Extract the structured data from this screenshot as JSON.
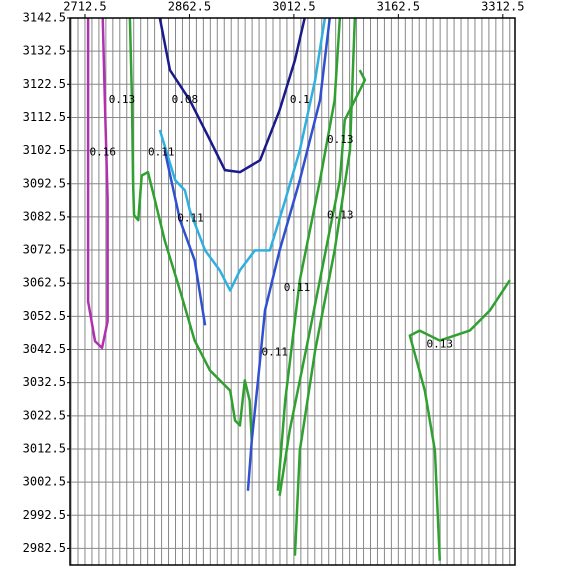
{
  "chart_data": {
    "type": "contour",
    "xlim": [
      2691,
      3330
    ],
    "ylim": [
      2977.5,
      3142.5
    ],
    "xticks": [
      2712.5,
      2862.5,
      3012.5,
      3162.5,
      3312.5
    ],
    "yticks": [
      3142.5,
      3132.5,
      3122.5,
      3112.5,
      3102.5,
      3092.5,
      3082.5,
      3072.5,
      3062.5,
      3052.5,
      3042.5,
      3032.5,
      3022.5,
      3012.5,
      3002.5,
      2992.5,
      2982.5
    ],
    "xgrid": [
      2692.5,
      2702.5,
      2712.5,
      2722.5,
      2732.5,
      2742.5,
      2752.5,
      2762.5,
      2772.5,
      2782.5,
      2792.5,
      2802.5,
      2812.5,
      2822.5,
      2832.5,
      2842.5,
      2852.5,
      2862.5,
      2872.5,
      2882.5,
      2892.5,
      2902.5,
      2912.5,
      2922.5,
      2932.5,
      2942.5,
      2952.5,
      2962.5,
      2972.5,
      2982.5,
      2992.5,
      3002.5,
      3012.5,
      3022.5,
      3032.5,
      3042.5,
      3052.5,
      3062.5,
      3072.5,
      3082.5,
      3092.5,
      3102.5,
      3112.5,
      3122.5,
      3132.5,
      3142.5,
      3152.5,
      3162.5,
      3172.5,
      3182.5,
      3192.5,
      3202.5,
      3212.5,
      3222.5,
      3232.5,
      3242.5,
      3252.5,
      3262.5,
      3272.5,
      3282.5,
      3292.5,
      3302.5,
      3312.5,
      3322.5
    ],
    "grid": true,
    "series": [
      {
        "color": "#b030b0",
        "x": [
          2717,
          2717,
          2727,
          2737,
          2745,
          2745,
          2741,
          2738
        ],
        "y": [
          3142.5,
          3057,
          3045,
          3043,
          3051,
          3088,
          3118,
          3142.5
        ]
      },
      {
        "color": "#30a030",
        "x": [
          2777,
          2780,
          2781.5,
          2783,
          2789,
          2794,
          2803,
          2813,
          2827,
          2849,
          2870,
          2892,
          2921,
          2928,
          2935,
          2942,
          2949,
          2952
        ],
        "y": [
          3142.5,
          3117.7,
          3093.6,
          3083,
          3081.5,
          3095,
          3096,
          3087.5,
          3075.4,
          3060.3,
          3045.2,
          3036.2,
          3030.1,
          3021.1,
          3019.6,
          3033.2,
          3027.1,
          3015
        ]
      },
      {
        "color": "#1a1a8a",
        "x": [
          2820,
          2834.5,
          2863,
          2892,
          2913.5,
          2935,
          2964,
          2992,
          3014,
          3028
        ],
        "y": [
          3142.5,
          3126.8,
          3117.7,
          3105.7,
          3096.6,
          3096,
          3099.6,
          3114.7,
          3129.8,
          3142.5
        ]
      },
      {
        "color": "#30b0e0",
        "x": [
          2820,
          2842,
          2856,
          2863,
          2885,
          2906,
          2921,
          2935,
          2956.5,
          2978,
          3000,
          3021,
          3043,
          3057
        ],
        "y": [
          3108.7,
          3093.6,
          3090.5,
          3084.5,
          3072.4,
          3066.4,
          3060.3,
          3066.4,
          3072.4,
          3072.4,
          3087.5,
          3102.6,
          3123.8,
          3142.5
        ]
      },
      {
        "color": "#3050d0",
        "x": [
          3064,
          3050,
          3021,
          2992,
          2971,
          2961,
          2952,
          2946.5
        ],
        "y": [
          3142.5,
          3117.7,
          3093.6,
          3072.4,
          3054.3,
          3033.2,
          3015,
          2999.9
        ]
      },
      {
        "color": "#3050d0",
        "x": [
          2827,
          2849,
          2870,
          2885
        ],
        "y": [
          3102.6,
          3081.5,
          3069.4,
          3049.8
        ]
      },
      {
        "color": "#30a030",
        "x": [
          3078.5,
          3071,
          3050,
          3021,
          3000,
          2989.5
        ],
        "y": [
          3142.5,
          3117.7,
          3093.6,
          3063.4,
          3027.1,
          2999.9
        ]
      },
      {
        "color": "#30a030",
        "x": [
          3100,
          3093,
          3071,
          3043,
          3021,
          3014
        ],
        "y": [
          3142.5,
          3102.6,
          3072.4,
          3042.2,
          3012,
          2980.3
        ]
      },
      {
        "color": "#30a030",
        "x": [
          3222,
          3215,
          3200.5,
          3179,
          3193,
          3222,
          3265,
          3294,
          3322.6
        ],
        "y": [
          2978.8,
          3012,
          3030.1,
          3046.7,
          3048.2,
          3045.2,
          3048.2,
          3054.3,
          3063.4
        ]
      },
      {
        "color": "#30a030",
        "x": [
          3107,
          3114.5,
          3100,
          3085.5,
          3078.5,
          3064,
          3035.5,
          3006.5,
          2992
        ],
        "y": [
          3126.8,
          3123.8,
          3117.7,
          3111.7,
          3093.6,
          3078.5,
          3048.2,
          3018.1,
          2998.4
        ]
      }
    ],
    "annotations": [
      {
        "text": "0.13",
        "x": 2765.6,
        "y": 3117.7
      },
      {
        "text": "0.08",
        "x": 2856,
        "y": 3117.7
      },
      {
        "text": "0.1",
        "x": 3021,
        "y": 3117.7
      },
      {
        "text": "0.16",
        "x": 2738,
        "y": 3102
      },
      {
        "text": "0.11",
        "x": 2822,
        "y": 3102
      },
      {
        "text": "0.13",
        "x": 3079,
        "y": 3105.7
      },
      {
        "text": "0.11",
        "x": 2864,
        "y": 3082
      },
      {
        "text": "0.13",
        "x": 3079,
        "y": 3083
      },
      {
        "text": "0.11",
        "x": 3017,
        "y": 3061
      },
      {
        "text": "0.11",
        "x": 2985,
        "y": 3041.6
      },
      {
        "text": "0.13",
        "x": 3222,
        "y": 3044
      }
    ]
  }
}
